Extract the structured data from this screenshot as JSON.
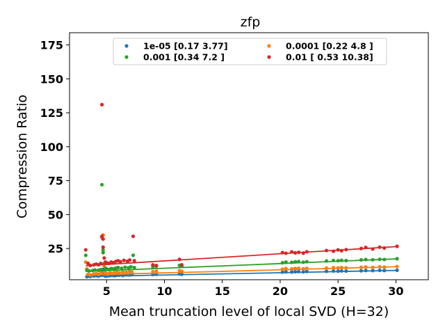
{
  "chart_data": {
    "type": "scatter",
    "title": "zfp",
    "xlabel": "Mean truncation level of local SVD (H=32)",
    "ylabel": "Compression Ratio",
    "xlim": [
      1.8,
      32.8
    ],
    "ylim": [
      2,
      184
    ],
    "xticks": [
      5,
      10,
      15,
      20,
      25,
      30
    ],
    "yticks": [
      25,
      50,
      75,
      100,
      125,
      150,
      175
    ],
    "grid": false,
    "legend": {
      "placement": "top-center",
      "columns": 2
    },
    "series": [
      {
        "name": "1e-05 [0.17 3.77]",
        "color": "#1f77b4",
        "fit": {
          "x": [
            3.2,
            30.2
          ],
          "y": [
            4.3,
            8.9
          ]
        },
        "points": [
          [
            3.3,
            4.2
          ],
          [
            3.4,
            4.6
          ],
          [
            3.6,
            4.4
          ],
          [
            3.9,
            4.8
          ],
          [
            4.1,
            5.0
          ],
          [
            4.3,
            4.7
          ],
          [
            4.5,
            5.2
          ],
          [
            4.6,
            8.0
          ],
          [
            4.7,
            9.5
          ],
          [
            4.7,
            5.5
          ],
          [
            4.8,
            6.0
          ],
          [
            4.9,
            4.6
          ],
          [
            5.0,
            5.1
          ],
          [
            5.1,
            4.8
          ],
          [
            5.3,
            5.0
          ],
          [
            5.5,
            5.2
          ],
          [
            5.7,
            4.9
          ],
          [
            5.9,
            5.3
          ],
          [
            6.1,
            5.4
          ],
          [
            6.4,
            5.1
          ],
          [
            6.7,
            5.6
          ],
          [
            7.0,
            5.5
          ],
          [
            7.2,
            5.8
          ],
          [
            9.0,
            5.8
          ],
          [
            9.3,
            6.0
          ],
          [
            11.3,
            6.3
          ],
          [
            11.5,
            6.0
          ],
          [
            20.2,
            7.6
          ],
          [
            20.5,
            7.8
          ],
          [
            21.0,
            7.7
          ],
          [
            21.3,
            7.9
          ],
          [
            21.6,
            8.0
          ],
          [
            22.0,
            7.8
          ],
          [
            22.3,
            8.1
          ],
          [
            24.0,
            8.2
          ],
          [
            24.6,
            8.4
          ],
          [
            25.0,
            8.3
          ],
          [
            25.3,
            8.5
          ],
          [
            25.7,
            8.4
          ],
          [
            27.0,
            8.6
          ],
          [
            27.4,
            8.8
          ],
          [
            28.0,
            8.7
          ],
          [
            28.6,
            8.9
          ],
          [
            29.0,
            8.8
          ],
          [
            30.1,
            9.0
          ]
        ]
      },
      {
        "name": "0.0001 [0.22 4.8 ]",
        "color": "#ff7f0e",
        "fit": {
          "x": [
            3.2,
            30.2
          ],
          "y": [
            5.5,
            11.6
          ]
        },
        "points": [
          [
            3.2,
            15.0
          ],
          [
            3.3,
            10.0
          ],
          [
            3.4,
            6.0
          ],
          [
            3.6,
            5.5
          ],
          [
            3.9,
            6.2
          ],
          [
            4.1,
            6.5
          ],
          [
            4.3,
            6.0
          ],
          [
            4.5,
            6.8
          ],
          [
            4.6,
            33.0
          ],
          [
            4.7,
            35.0
          ],
          [
            4.7,
            22.0
          ],
          [
            4.8,
            12.0
          ],
          [
            4.8,
            8.0
          ],
          [
            4.9,
            7.0
          ],
          [
            5.0,
            6.5
          ],
          [
            5.1,
            6.2
          ],
          [
            5.3,
            7.0
          ],
          [
            5.5,
            6.6
          ],
          [
            5.7,
            7.2
          ],
          [
            5.9,
            7.5
          ],
          [
            6.1,
            7.0
          ],
          [
            6.4,
            7.8
          ],
          [
            6.7,
            7.4
          ],
          [
            7.0,
            8.0
          ],
          [
            7.2,
            7.6
          ],
          [
            9.0,
            8.0
          ],
          [
            9.3,
            8.3
          ],
          [
            11.3,
            8.6
          ],
          [
            11.5,
            8.2
          ],
          [
            20.2,
            9.8
          ],
          [
            20.5,
            10.2
          ],
          [
            21.0,
            10.0
          ],
          [
            21.3,
            10.3
          ],
          [
            21.6,
            10.5
          ],
          [
            22.0,
            10.1
          ],
          [
            22.3,
            10.4
          ],
          [
            24.0,
            10.6
          ],
          [
            24.6,
            10.9
          ],
          [
            25.0,
            10.7
          ],
          [
            25.3,
            11.0
          ],
          [
            25.7,
            10.8
          ],
          [
            27.0,
            11.2
          ],
          [
            27.4,
            11.4
          ],
          [
            28.0,
            11.1
          ],
          [
            28.6,
            11.5
          ],
          [
            29.0,
            11.3
          ],
          [
            30.1,
            11.7
          ]
        ]
      },
      {
        "name": "0.001 [0.34 7.2 ]",
        "color": "#2ca02c",
        "fit": {
          "x": [
            3.2,
            30.2
          ],
          "y": [
            8.1,
            17.4
          ]
        },
        "points": [
          [
            3.2,
            20.0
          ],
          [
            3.3,
            9.0
          ],
          [
            3.5,
            8.5
          ],
          [
            3.8,
            8.8
          ],
          [
            4.0,
            9.2
          ],
          [
            4.3,
            9.0
          ],
          [
            4.5,
            9.5
          ],
          [
            4.6,
            72.0
          ],
          [
            4.7,
            24.0
          ],
          [
            4.7,
            22.0
          ],
          [
            4.8,
            14.0
          ],
          [
            4.9,
            10.5
          ],
          [
            5.0,
            10.0
          ],
          [
            5.2,
            9.6
          ],
          [
            5.4,
            10.3
          ],
          [
            5.6,
            10.0
          ],
          [
            5.8,
            10.6
          ],
          [
            6.0,
            11.0
          ],
          [
            6.3,
            10.4
          ],
          [
            6.6,
            11.2
          ],
          [
            6.9,
            10.8
          ],
          [
            7.1,
            11.5
          ],
          [
            7.3,
            20.0
          ],
          [
            7.4,
            11.0
          ],
          [
            9.0,
            11.5
          ],
          [
            9.3,
            12.0
          ],
          [
            11.3,
            12.6
          ],
          [
            11.5,
            12.0
          ],
          [
            20.2,
            14.5
          ],
          [
            20.5,
            15.0
          ],
          [
            21.0,
            14.8
          ],
          [
            21.3,
            15.2
          ],
          [
            21.6,
            15.4
          ],
          [
            22.0,
            14.9
          ],
          [
            22.3,
            15.3
          ],
          [
            24.0,
            15.8
          ],
          [
            24.6,
            16.2
          ],
          [
            25.0,
            16.0
          ],
          [
            25.3,
            16.3
          ],
          [
            25.7,
            16.1
          ],
          [
            27.0,
            16.6
          ],
          [
            27.4,
            16.9
          ],
          [
            28.0,
            16.7
          ],
          [
            28.6,
            17.1
          ],
          [
            29.0,
            16.9
          ],
          [
            30.1,
            17.5
          ]
        ]
      },
      {
        "name": "0.01 [ 0.53 10.38]",
        "color": "#d62728",
        "fit": {
          "x": [
            3.2,
            30.2
          ],
          "y": [
            12.3,
            26.5
          ]
        },
        "points": [
          [
            3.2,
            24.0
          ],
          [
            3.4,
            14.0
          ],
          [
            3.6,
            12.5
          ],
          [
            3.9,
            13.0
          ],
          [
            4.1,
            13.5
          ],
          [
            4.3,
            13.0
          ],
          [
            4.5,
            14.0
          ],
          [
            4.6,
            131.0
          ],
          [
            4.6,
            34.0
          ],
          [
            4.7,
            32.0
          ],
          [
            4.7,
            26.0
          ],
          [
            4.8,
            18.0
          ],
          [
            4.9,
            15.0
          ],
          [
            5.0,
            14.5
          ],
          [
            5.2,
            14.0
          ],
          [
            5.4,
            15.0
          ],
          [
            5.6,
            14.6
          ],
          [
            5.8,
            15.5
          ],
          [
            6.0,
            16.0
          ],
          [
            6.2,
            15.2
          ],
          [
            6.5,
            16.3
          ],
          [
            6.8,
            15.6
          ],
          [
            7.0,
            16.5
          ],
          [
            7.3,
            34.0
          ],
          [
            7.4,
            16.0
          ],
          [
            9.0,
            13.0
          ],
          [
            9.3,
            12.5
          ],
          [
            11.3,
            17.0
          ],
          [
            11.5,
            13.0
          ],
          [
            20.2,
            22.0
          ],
          [
            20.5,
            21.5
          ],
          [
            21.0,
            22.5
          ],
          [
            21.3,
            21.8
          ],
          [
            21.6,
            22.2
          ],
          [
            22.0,
            21.6
          ],
          [
            22.3,
            22.6
          ],
          [
            24.0,
            23.5
          ],
          [
            24.6,
            23.0
          ],
          [
            25.0,
            24.0
          ],
          [
            25.3,
            23.4
          ],
          [
            25.7,
            24.2
          ],
          [
            27.0,
            25.0
          ],
          [
            27.4,
            25.8
          ],
          [
            28.0,
            24.6
          ],
          [
            28.6,
            26.0
          ],
          [
            29.0,
            25.4
          ],
          [
            30.1,
            26.6
          ]
        ]
      }
    ]
  }
}
